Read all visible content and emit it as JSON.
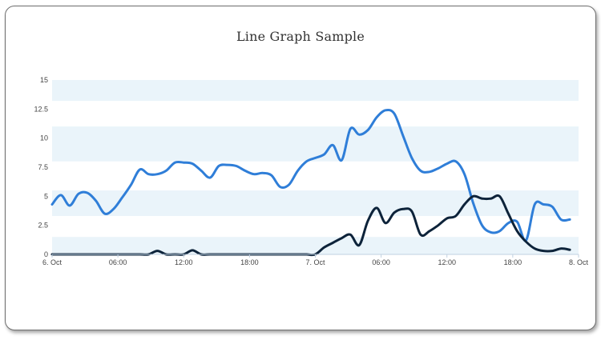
{
  "chart_data": {
    "type": "line",
    "title": "Line Graph Sample",
    "xlabel": "",
    "ylabel": "",
    "ylim": [
      0,
      15
    ],
    "xlim": [
      0,
      48
    ],
    "x_unit": "hours since 6. Oct 00:00",
    "grid": "alternating horizontal bands",
    "legend": "none",
    "y_ticks": [
      "0",
      "2.5",
      "5",
      "7.5",
      "10",
      "12.5",
      "15"
    ],
    "x_tick_positions": [
      0,
      6,
      12,
      18,
      24,
      30,
      36,
      42,
      48
    ],
    "x_ticks": [
      "6. Oct",
      "06:00",
      "12:00",
      "18:00",
      "7. Oct",
      "06:00",
      "12:00",
      "18:00",
      "8. Oct"
    ],
    "series": [
      {
        "color": "#2f7ed8",
        "x": [
          0,
          0.8,
          1.6,
          2.4,
          3.2,
          4.0,
          4.8,
          5.6,
          6.4,
          7.2,
          8.0,
          8.8,
          9.6,
          10.4,
          11.2,
          12.0,
          12.8,
          13.6,
          14.4,
          15.2,
          16.0,
          16.8,
          17.6,
          18.4,
          19.2,
          20.0,
          20.8,
          21.6,
          22.4,
          23.2,
          24.0,
          24.8,
          25.6,
          26.4,
          27.2,
          28.0,
          28.8,
          29.6,
          30.4,
          31.2,
          32.0,
          32.8,
          33.6,
          34.4,
          35.2,
          36.0,
          36.8,
          37.6,
          38.4,
          39.2,
          40.0,
          40.8,
          41.6,
          42.4,
          43.2,
          44.0,
          44.8,
          45.6,
          46.4,
          47.2
        ],
        "y": [
          4.3,
          5.1,
          4.2,
          5.2,
          5.3,
          4.6,
          3.5,
          3.9,
          4.9,
          6.0,
          7.3,
          6.9,
          6.9,
          7.2,
          7.9,
          7.9,
          7.8,
          7.2,
          6.6,
          7.6,
          7.7,
          7.6,
          7.2,
          6.9,
          7.0,
          6.8,
          5.8,
          6.0,
          7.2,
          8.0,
          8.3,
          8.6,
          9.4,
          8.1,
          10.8,
          10.3,
          10.7,
          11.8,
          12.4,
          12.1,
          10.2,
          8.3,
          7.2,
          7.1,
          7.4,
          7.8,
          8.0,
          6.9,
          4.4,
          2.5,
          1.9,
          2.0,
          2.7,
          2.8,
          1.2,
          4.3,
          4.3,
          4.1,
          3.0,
          3.0
        ]
      },
      {
        "color": "#0d233a",
        "x": [
          0,
          0.8,
          1.6,
          2.4,
          3.2,
          4.0,
          4.8,
          5.6,
          6.4,
          7.2,
          8.0,
          8.8,
          9.6,
          10.4,
          11.2,
          12.0,
          12.8,
          13.6,
          14.4,
          15.2,
          16.0,
          16.8,
          17.6,
          18.4,
          19.2,
          20.0,
          20.8,
          21.6,
          22.4,
          23.2,
          24.0,
          24.8,
          25.6,
          26.4,
          27.2,
          28.0,
          28.8,
          29.6,
          30.4,
          31.2,
          32.0,
          32.8,
          33.6,
          34.4,
          35.2,
          36.0,
          36.8,
          37.6,
          38.4,
          39.2,
          40.0,
          40.8,
          41.6,
          42.4,
          43.2,
          44.0,
          44.8,
          45.6,
          46.4,
          47.2
        ],
        "y": [
          0,
          0,
          0,
          0,
          0,
          0,
          0,
          0,
          0,
          0,
          0,
          0,
          0.3,
          0,
          0,
          0,
          0.35,
          0,
          0,
          0,
          0,
          0,
          0,
          0,
          0,
          0,
          0,
          0,
          0,
          0,
          0,
          0.6,
          1.0,
          1.4,
          1.7,
          0.8,
          2.9,
          4.0,
          2.7,
          3.6,
          3.9,
          3.7,
          1.7,
          2.0,
          2.5,
          3.1,
          3.3,
          4.3,
          5.0,
          4.8,
          4.8,
          5.0,
          3.5,
          2.0,
          1.1,
          0.5,
          0.3,
          0.3,
          0.5,
          0.4
        ]
      }
    ]
  }
}
